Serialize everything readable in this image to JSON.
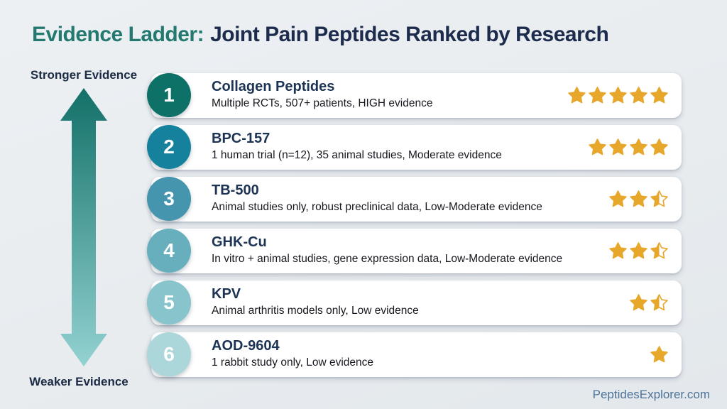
{
  "title": {
    "prefix": "Evidence Ladder:",
    "rest": "Joint Pain Peptides Ranked by Research"
  },
  "axis": {
    "top_label": "Stronger Evidence",
    "bottom_label": "Weaker Evidence"
  },
  "rows": [
    {
      "rank": "1",
      "name": "Collagen Peptides",
      "detail": "Multiple RCTs, 507+ patients, HIGH evidence",
      "stars": 5,
      "circle_color": "#0e7168"
    },
    {
      "rank": "2",
      "name": "BPC-157",
      "detail": "1 human trial (n=12), 35 animal studies, Moderate evidence",
      "stars": 4,
      "circle_color": "#15819c"
    },
    {
      "rank": "3",
      "name": "TB-500",
      "detail": "Animal studies only, robust preclinical data, Low-Moderate evidence",
      "stars": 2.5,
      "circle_color": "#4595ae"
    },
    {
      "rank": "4",
      "name": "GHK-Cu",
      "detail": "In vitro + animal studies, gene expression data, Low-Moderate evidence",
      "stars": 2.5,
      "circle_color": "#67afbc"
    },
    {
      "rank": "5",
      "name": "KPV",
      "detail": "Animal arthritis models only, Low evidence",
      "stars": 1.5,
      "circle_color": "#88c4cb"
    },
    {
      "rank": "6",
      "name": "AOD-9604",
      "detail": "1 rabbit study only, Low evidence",
      "stars": 1,
      "circle_color": "#abd6da"
    }
  ],
  "footer": {
    "site": "PeptidesExplorer.com"
  },
  "colors": {
    "background": "#e9edf0",
    "accent_teal": "#23796f",
    "navy": "#1d2b4c",
    "star_gold": "#e7a72b",
    "arrow_top": "#137068",
    "arrow_bottom": "#93d2d2"
  }
}
